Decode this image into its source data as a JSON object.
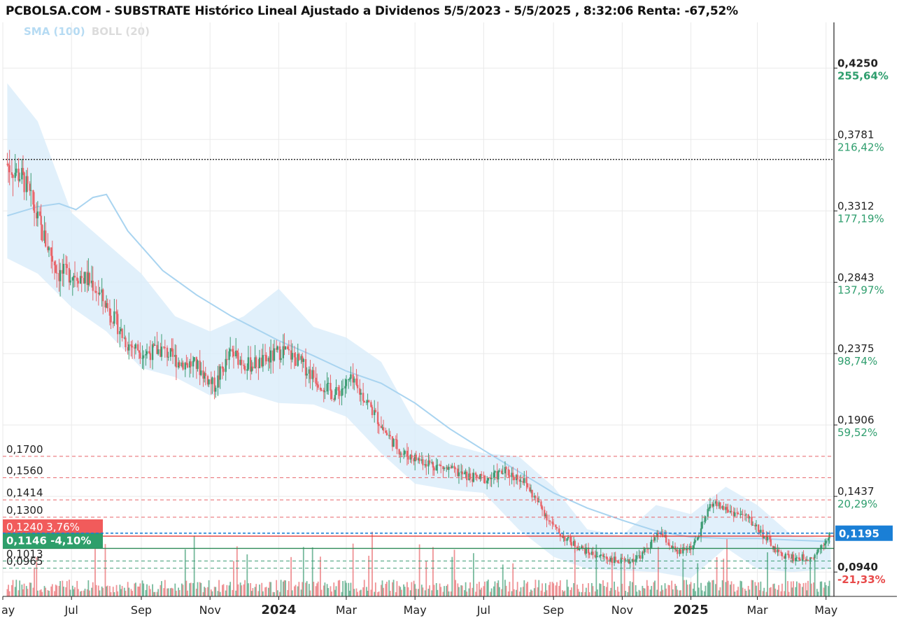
{
  "header": {
    "title": "PCBOLSA.COM - SUBSTRATE Histórico Lineal Ajustado a Dividenos 5/5/2023 - 5/5/2025 , 8:32:06 Renta: -67,52%"
  },
  "legend": {
    "sma": "SMA (100)",
    "boll": "BOLL (20)"
  },
  "colors": {
    "up": "#3d9c73",
    "down": "#e8656a",
    "sma": "#a9d4f0",
    "band": "#d9ecfa",
    "grid": "#eaeaea",
    "resistance": "#e8656a",
    "support": "#3d9c73",
    "current": "#1a7fd6"
  },
  "chart_data": {
    "type": "line",
    "title": "PCBOLSA.COM - SUBSTRATE Histórico Lineal Ajustado a Dividenos 5/5/2023 - 5/5/2025 , 8:32:06 Renta: -67,52%",
    "x_range": [
      "2023-05-05",
      "2025-05-05"
    ],
    "x_ticks": [
      {
        "label": "ay",
        "date": "2023-05-01"
      },
      {
        "label": "Jul",
        "date": "2023-07-01"
      },
      {
        "label": "Sep",
        "date": "2023-09-01"
      },
      {
        "label": "Nov",
        "date": "2023-11-01"
      },
      {
        "label": "2024",
        "date": "2024-01-01",
        "bold": true
      },
      {
        "label": "Mar",
        "date": "2024-03-01"
      },
      {
        "label": "May",
        "date": "2024-05-01"
      },
      {
        "label": "Jul",
        "date": "2024-07-01"
      },
      {
        "label": "Sep",
        "date": "2024-09-01"
      },
      {
        "label": "Nov",
        "date": "2024-11-01"
      },
      {
        "label": "2025",
        "date": "2025-01-01",
        "bold": true
      },
      {
        "label": "Mar",
        "date": "2025-03-01"
      },
      {
        "label": "May",
        "date": "2025-05-01"
      }
    ],
    "y_ticks": [
      {
        "value": 0.425,
        "label": "0,4250",
        "pct": "255,64%",
        "bold": true
      },
      {
        "value": 0.3781,
        "label": "0,3781",
        "pct": "216,42%"
      },
      {
        "value": 0.3312,
        "label": "0,3312",
        "pct": "177,19%"
      },
      {
        "value": 0.2843,
        "label": "0,2843",
        "pct": "137,97%"
      },
      {
        "value": 0.2375,
        "label": "0,2375",
        "pct": "98,74%"
      },
      {
        "value": 0.1906,
        "label": "0,1906",
        "pct": "59,52%"
      },
      {
        "value": 0.1437,
        "label": "0,1437",
        "pct": "20,29%"
      },
      {
        "value": 0.094,
        "label": "0,0940",
        "pct": "-21,33%",
        "bold": true,
        "neg": true
      }
    ],
    "ylim": [
      0.078,
      0.455
    ],
    "reference_line": 0.365,
    "resistance_levels": [
      {
        "value": 0.17,
        "label": "0,1700"
      },
      {
        "value": 0.156,
        "label": "0,1560"
      },
      {
        "value": 0.1414,
        "label": "0,1414"
      },
      {
        "value": 0.13,
        "label": "0,1300"
      }
    ],
    "support_levels": [
      {
        "value": 0.1013,
        "label": "0,1013"
      },
      {
        "value": 0.0965,
        "label": "0,0965"
      }
    ],
    "badges": [
      {
        "value": 0.124,
        "label": "0,1240",
        "change": "3,76%",
        "kind": "red"
      },
      {
        "value": 0.1146,
        "label": "0,1146",
        "change": "-4,10%",
        "kind": "green"
      },
      {
        "value": 0.1195,
        "label": "0,1195",
        "kind": "current"
      }
    ],
    "series": [
      {
        "name": "Price",
        "points": [
          [
            "2023-05-05",
            0.362
          ],
          [
            "2023-05-20",
            0.352
          ],
          [
            "2023-06-05",
            0.318
          ],
          [
            "2023-06-20",
            0.29
          ],
          [
            "2023-07-05",
            0.29
          ],
          [
            "2023-07-20",
            0.284
          ],
          [
            "2023-08-05",
            0.265
          ],
          [
            "2023-08-20",
            0.244
          ],
          [
            "2023-09-05",
            0.238
          ],
          [
            "2023-09-20",
            0.24
          ],
          [
            "2023-10-05",
            0.232
          ],
          [
            "2023-10-20",
            0.23
          ],
          [
            "2023-11-05",
            0.216
          ],
          [
            "2023-11-20",
            0.238
          ],
          [
            "2023-12-05",
            0.23
          ],
          [
            "2023-12-20",
            0.232
          ],
          [
            "2024-01-05",
            0.24
          ],
          [
            "2024-01-20",
            0.232
          ],
          [
            "2024-02-05",
            0.22
          ],
          [
            "2024-02-20",
            0.21
          ],
          [
            "2024-03-05",
            0.22
          ],
          [
            "2024-03-20",
            0.206
          ],
          [
            "2024-04-05",
            0.186
          ],
          [
            "2024-04-20",
            0.172
          ],
          [
            "2024-05-05",
            0.168
          ],
          [
            "2024-05-20",
            0.164
          ],
          [
            "2024-06-05",
            0.16
          ],
          [
            "2024-06-20",
            0.156
          ],
          [
            "2024-07-05",
            0.155
          ],
          [
            "2024-07-20",
            0.16
          ],
          [
            "2024-08-05",
            0.155
          ],
          [
            "2024-08-20",
            0.138
          ],
          [
            "2024-09-05",
            0.12
          ],
          [
            "2024-09-20",
            0.112
          ],
          [
            "2024-10-05",
            0.106
          ],
          [
            "2024-10-20",
            0.103
          ],
          [
            "2024-11-05",
            0.1
          ],
          [
            "2024-11-20",
            0.106
          ],
          [
            "2024-12-05",
            0.12
          ],
          [
            "2024-12-20",
            0.106
          ],
          [
            "2025-01-05",
            0.112
          ],
          [
            "2025-01-20",
            0.14
          ],
          [
            "2025-02-05",
            0.134
          ],
          [
            "2025-02-20",
            0.13
          ],
          [
            "2025-03-05",
            0.12
          ],
          [
            "2025-03-20",
            0.106
          ],
          [
            "2025-04-05",
            0.103
          ],
          [
            "2025-04-20",
            0.104
          ],
          [
            "2025-05-05",
            0.1195
          ]
        ]
      },
      {
        "name": "SMA (100)",
        "points": [
          [
            "2023-05-05",
            0.328
          ],
          [
            "2023-06-01",
            0.334
          ],
          [
            "2023-06-20",
            0.336
          ],
          [
            "2023-07-05",
            0.332
          ],
          [
            "2023-07-20",
            0.34
          ],
          [
            "2023-08-01",
            0.342
          ],
          [
            "2023-08-20",
            0.318
          ],
          [
            "2023-09-20",
            0.292
          ],
          [
            "2023-10-20",
            0.276
          ],
          [
            "2023-11-20",
            0.262
          ],
          [
            "2024-01-01",
            0.246
          ],
          [
            "2024-02-01",
            0.236
          ],
          [
            "2024-03-01",
            0.226
          ],
          [
            "2024-04-01",
            0.218
          ],
          [
            "2024-05-01",
            0.205
          ],
          [
            "2024-06-01",
            0.188
          ],
          [
            "2024-07-01",
            0.174
          ],
          [
            "2024-08-01",
            0.16
          ],
          [
            "2024-09-01",
            0.146
          ],
          [
            "2024-10-01",
            0.136
          ],
          [
            "2024-11-01",
            0.128
          ],
          [
            "2024-12-01",
            0.121
          ],
          [
            "2025-01-01",
            0.117
          ],
          [
            "2025-02-01",
            0.116
          ],
          [
            "2025-03-01",
            0.116
          ],
          [
            "2025-04-01",
            0.115
          ],
          [
            "2025-05-05",
            0.114
          ]
        ]
      }
    ],
    "bollinger_band": {
      "name": "BOLL (20)",
      "upper": [
        [
          "2023-05-05",
          0.415
        ],
        [
          "2023-06-01",
          0.39
        ],
        [
          "2023-07-01",
          0.33
        ],
        [
          "2023-08-01",
          0.31
        ],
        [
          "2023-09-01",
          0.29
        ],
        [
          "2023-10-01",
          0.262
        ],
        [
          "2023-11-01",
          0.252
        ],
        [
          "2023-12-01",
          0.262
        ],
        [
          "2024-01-01",
          0.28
        ],
        [
          "2024-02-01",
          0.255
        ],
        [
          "2024-03-01",
          0.248
        ],
        [
          "2024-04-01",
          0.232
        ],
        [
          "2024-05-01",
          0.192
        ],
        [
          "2024-06-01",
          0.178
        ],
        [
          "2024-07-01",
          0.172
        ],
        [
          "2024-08-01",
          0.17
        ],
        [
          "2024-09-01",
          0.15
        ],
        [
          "2024-10-01",
          0.122
        ],
        [
          "2024-11-01",
          0.118
        ],
        [
          "2024-12-01",
          0.138
        ],
        [
          "2025-01-01",
          0.132
        ],
        [
          "2025-02-01",
          0.15
        ],
        [
          "2025-03-01",
          0.138
        ],
        [
          "2025-04-01",
          0.118
        ],
        [
          "2025-05-05",
          0.116
        ]
      ],
      "lower": [
        [
          "2023-05-05",
          0.3
        ],
        [
          "2023-06-01",
          0.29
        ],
        [
          "2023-07-01",
          0.268
        ],
        [
          "2023-08-01",
          0.252
        ],
        [
          "2023-09-01",
          0.228
        ],
        [
          "2023-10-01",
          0.222
        ],
        [
          "2023-11-01",
          0.21
        ],
        [
          "2023-12-01",
          0.212
        ],
        [
          "2024-01-01",
          0.205
        ],
        [
          "2024-02-01",
          0.204
        ],
        [
          "2024-03-01",
          0.196
        ],
        [
          "2024-04-01",
          0.172
        ],
        [
          "2024-05-01",
          0.152
        ],
        [
          "2024-06-01",
          0.148
        ],
        [
          "2024-07-01",
          0.146
        ],
        [
          "2024-08-01",
          0.122
        ],
        [
          "2024-09-01",
          0.104
        ],
        [
          "2024-10-01",
          0.096
        ],
        [
          "2024-11-01",
          0.095
        ],
        [
          "2024-12-01",
          0.094
        ],
        [
          "2025-01-01",
          0.09
        ],
        [
          "2025-02-01",
          0.11
        ],
        [
          "2025-03-01",
          0.096
        ],
        [
          "2025-04-01",
          0.094
        ],
        [
          "2025-05-05",
          0.096
        ]
      ]
    }
  }
}
